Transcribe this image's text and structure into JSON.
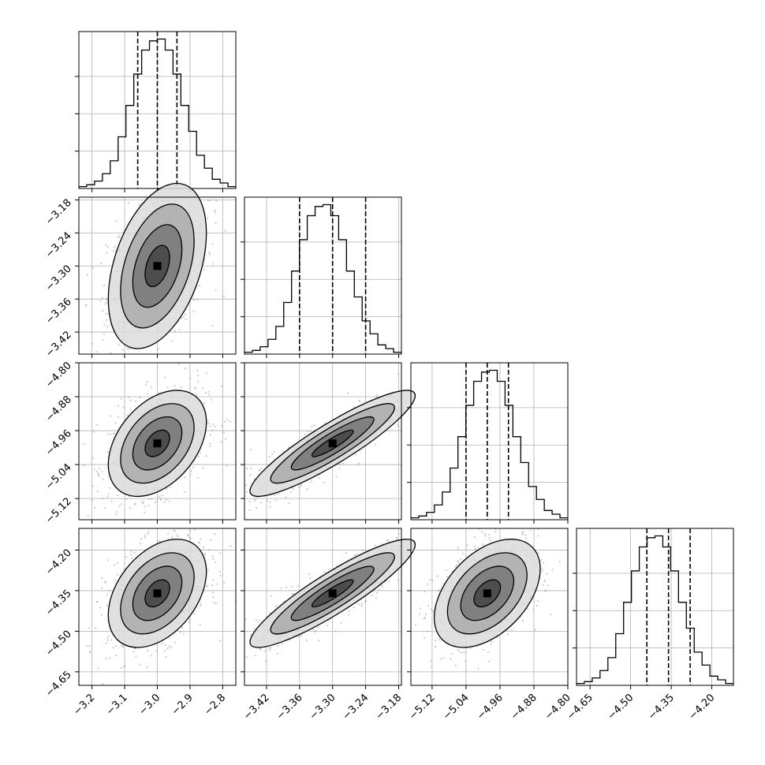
{
  "chart_data": {
    "type": "corner",
    "grid": true,
    "n_params": 4,
    "params": [
      {
        "median": -3.0,
        "q16": -3.06,
        "q84": -2.94,
        "range": [
          -3.24,
          -2.76
        ],
        "ticks": [
          -3.2,
          -3.1,
          -3.0,
          -2.9,
          -2.8
        ],
        "tick_labels": [
          "−3.2",
          "−3.1",
          "−3.0",
          "−2.9",
          "−2.8"
        ],
        "hist": [
          1,
          2,
          4,
          8,
          15,
          28,
          45,
          62,
          75,
          80,
          81,
          75,
          62,
          45,
          31,
          18,
          11,
          5,
          3,
          1
        ]
      },
      {
        "median": -3.3,
        "q16": -3.36,
        "q84": -3.24,
        "range": [
          -3.46,
          -3.175
        ],
        "ticks": [
          -3.42,
          -3.36,
          -3.3,
          -3.24,
          -3.18
        ],
        "tick_labels": [
          "−3.42",
          "−3.36",
          "−3.30",
          "−3.24",
          "−3.18"
        ],
        "hist": [
          1,
          2,
          4,
          8,
          15,
          28,
          45,
          62,
          75,
          80,
          81,
          75,
          62,
          45,
          31,
          18,
          11,
          5,
          3,
          1
        ]
      },
      {
        "median": -4.99,
        "q16": -5.04,
        "q84": -4.94,
        "range": [
          -5.17,
          -4.8
        ],
        "ticks": [
          -5.12,
          -5.04,
          -4.96,
          -4.88,
          -4.8
        ],
        "tick_labels": [
          "−5.12",
          "−5.04",
          "−4.96",
          "−4.88",
          "−4.80"
        ],
        "hist": [
          1,
          2,
          4,
          8,
          15,
          28,
          45,
          62,
          75,
          80,
          81,
          75,
          62,
          45,
          31,
          18,
          11,
          5,
          3,
          1
        ]
      },
      {
        "median": -4.36,
        "q16": -4.44,
        "q84": -4.28,
        "range": [
          -4.7,
          -4.12
        ],
        "ticks": [
          -4.65,
          -4.5,
          -4.35,
          -4.2
        ],
        "tick_labels": [
          "−4.65",
          "−4.50",
          "−4.35",
          "−4.20"
        ],
        "hist": [
          1,
          2,
          4,
          8,
          15,
          28,
          45,
          62,
          75,
          80,
          81,
          75,
          62,
          45,
          31,
          18,
          11,
          5,
          3,
          1
        ]
      }
    ],
    "correlations": [
      [
        1,
        0.4,
        0.4,
        0.4
      ],
      [
        0.4,
        1,
        0.9,
        0.9
      ],
      [
        0.4,
        0.9,
        1,
        0.45
      ],
      [
        0.4,
        0.9,
        0.45,
        1
      ]
    ],
    "contour_levels_sigma": [
      0.5,
      1.0,
      1.5,
      2.0
    ]
  }
}
